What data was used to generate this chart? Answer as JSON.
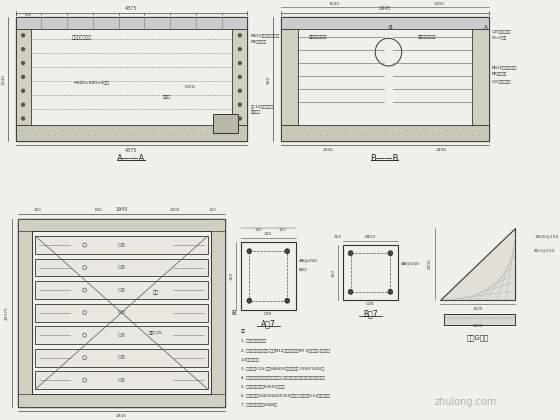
{
  "bg_color": "#f0f0eb",
  "line_color": "#333333",
  "dim_color": "#444444",
  "text_color": "#222222",
  "watermark": "zhulong.com",
  "section_labels": {
    "AA": "A——A",
    "BB": "B——B",
    "A7": "A大7",
    "B7": "B大7",
    "GBase": "局部G基础"
  },
  "notes": [
    "注：",
    "1. 中心线锁定标志。",
    "2. 电缆沟内层人工回填,使用M10水泵混合研制M7.5水泵沙浆,广度枚层",
    "1:3水泵砂糖。",
    "3. 混凝土层C25,钉筏HB400(混凝土层为 1500*500)。",
    "4. 电缆沟内层人工回填并压实处理,具体工程量「该内层工程设计内容」。",
    "5. 盖板采用尺寸为500X5角骨。",
    "6. 盖板尺寸为2400X400X350重量板,每块重量0.5t的重量板。",
    "7. 设计荷载每米为20kN。"
  ]
}
